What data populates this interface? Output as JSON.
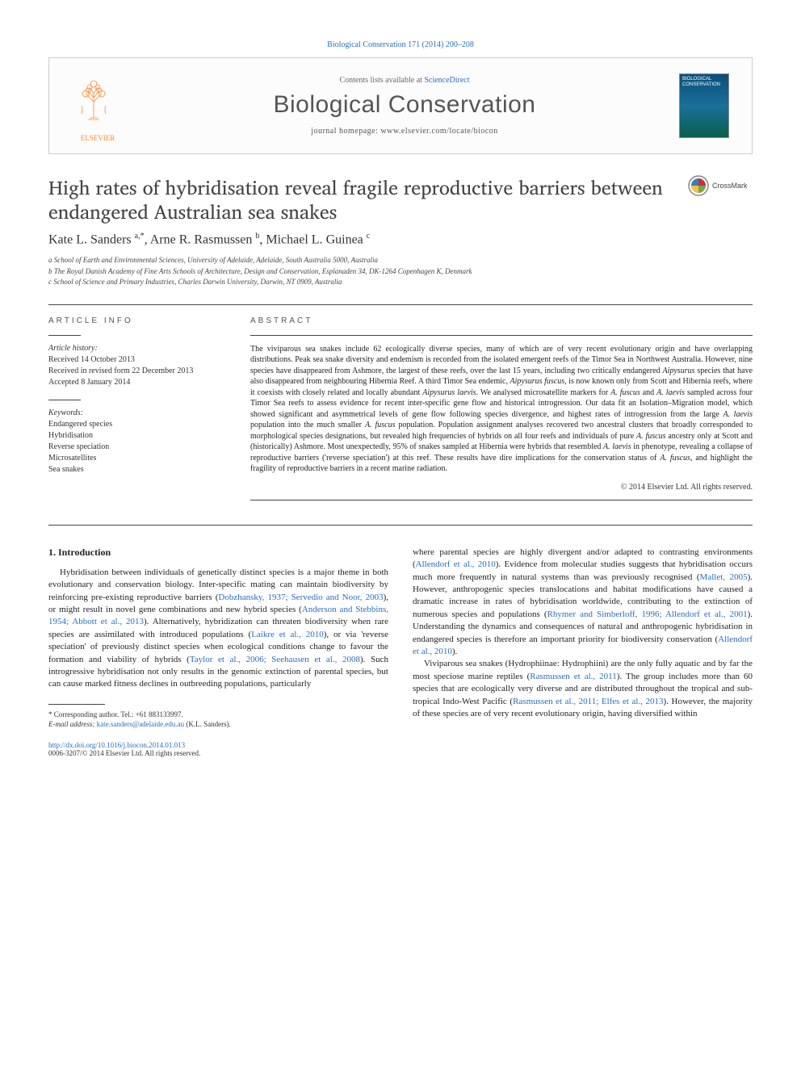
{
  "citation": {
    "journal": "Biological Conservation",
    "vol_pages": "171 (2014) 200–208",
    "url_text": "Biological Conservation 171 (2014) 200–208"
  },
  "banner": {
    "contents_prefix": "Contents lists available at ",
    "contents_link": "ScienceDirect",
    "journal_title": "Biological Conservation",
    "homepage_prefix": "journal homepage: ",
    "homepage_url": "www.elsevier.com/locate/biocon",
    "publisher_name": "ELSEVIER",
    "cover_label": "BIOLOGICAL CONSERVATION"
  },
  "crossmark_label": "CrossMark",
  "article": {
    "title": "High rates of hybridisation reveal fragile reproductive barriers between endangered Australian sea snakes",
    "authors_html": "Kate L. Sanders <sup>a,*</sup>, Arne R. Rasmussen <sup>b</sup>, Michael L. Guinea <sup>c</sup>",
    "affiliations": [
      "a School of Earth and Environmental Sciences, University of Adelaide, Adelaide, South Australia 5000, Australia",
      "b The Royal Danish Academy of Fine Arts Schools of Architecture, Design and Conservation, Esplanaden 34, DK-1264 Copenhagen K, Denmark",
      "c School of Science and Primary Industries, Charles Darwin University, Darwin, NT 0909, Australia"
    ]
  },
  "article_info": {
    "head": "ARTICLE INFO",
    "history_head": "Article history:",
    "history": [
      "Received 14 October 2013",
      "Received in revised form 22 December 2013",
      "Accepted 8 January 2014"
    ],
    "keywords_head": "Keywords:",
    "keywords": [
      "Endangered species",
      "Hybridisation",
      "Reverse speciation",
      "Microsatellites",
      "Sea snakes"
    ]
  },
  "abstract": {
    "head": "ABSTRACT",
    "text": "The viviparous sea snakes include 62 ecologically diverse species, many of which are of very recent evolutionary origin and have overlapping distributions. Peak sea snake diversity and endemism is recorded from the isolated emergent reefs of the Timor Sea in Northwest Australia. However, nine species have disappeared from Ashmore, the largest of these reefs, over the last 15 years, including two critically endangered Aipysurus species that have also disappeared from neighbouring Hibernia Reef. A third Timor Sea endemic, Aipysurus fuscus, is now known only from Scott and Hibernia reefs, where it coexists with closely related and locally abundant Aipysurus laevis. We analysed microsatellite markers for A. fuscus and A. laevis sampled across four Timor Sea reefs to assess evidence for recent inter-specific gene flow and historical introgression. Our data fit an Isolation–Migration model, which showed significant and asymmetrical levels of gene flow following species divergence, and highest rates of introgression from the large A. laevis population into the much smaller A. fuscus population. Population assignment analyses recovered two ancestral clusters that broadly corresponded to morphological species designations, but revealed high frequencies of hybrids on all four reefs and individuals of pure A. fuscus ancestry only at Scott and (historically) Ashmore. Most unexpectedly, 95% of snakes sampled at Hibernia were hybrids that resembled A. laevis in phenotype, revealing a collapse of reproductive barriers ('reverse speciation') at this reef. These results have dire implications for the conservation status of A. fuscus, and highlight the fragility of reproductive barriers in a recent marine radiation.",
    "copyright": "© 2014 Elsevier Ltd. All rights reserved."
  },
  "body": {
    "section_heading": "1. Introduction",
    "col1_p1_pre": "Hybridisation between individuals of genetically distinct species is a major theme in both evolutionary and conservation biology. Inter-specific mating can maintain biodiversity by reinforcing pre-existing reproductive barriers (",
    "col1_p1_ref1": "Dobzhansky, 1937; Servedio and Noor, 2003",
    "col1_p1_mid1": "), or might result in novel gene combinations and new hybrid species (",
    "col1_p1_ref2": "Anderson and Stebbins, 1954; Abbott et al., 2013",
    "col1_p1_mid2": "). Alternatively, hybridization can threaten biodiversity when rare species are assimilated with introduced populations (",
    "col1_p1_ref3": "Laikre et al., 2010",
    "col1_p1_mid3": "), or via 'reverse speciation' of previously distinct species when ecological conditions change to favour the formation and viability of hybrids (",
    "col1_p1_ref4": "Taylor et al., 2006; Seehausen et al., 2008",
    "col1_p1_post": "). Such introgressive hybridisation not only results in the genomic extinction of parental species, but can cause marked fitness declines in outbreeding populations, particularly",
    "col2_p1_pre": "where parental species are highly divergent and/or adapted to contrasting environments (",
    "col2_p1_ref1": "Allendorf et al., 2010",
    "col2_p1_mid1": "). Evidence from molecular studies suggests that hybridisation occurs much more frequently in natural systems than was previously recognised (",
    "col2_p1_ref2": "Mallet, 2005",
    "col2_p1_mid2": "). However, anthropogenic species translocations and habitat modifications have caused a dramatic increase in rates of hybridisation worldwide, contributing to the extinction of numerous species and populations (",
    "col2_p1_ref3": "Rhymer and Simberloff, 1996; Allendorf et al., 2001",
    "col2_p1_mid3": "). Understanding the dynamics and consequences of natural and anthropogenic hybridisation in endangered species is therefore an important priority for biodiversity conservation (",
    "col2_p1_ref4": "Allendorf et al., 2010",
    "col2_p1_post": ").",
    "col2_p2_pre": "Viviparous sea snakes (Hydrophiinae: Hydrophiini) are the only fully aquatic and by far the most speciose marine reptiles (",
    "col2_p2_ref1": "Rasmussen et al., 2011",
    "col2_p2_mid1": "). The group includes more than 60 species that are ecologically very diverse and are distributed throughout the tropical and sub-tropical Indo-West Pacific (",
    "col2_p2_ref2": "Rasmussen et al., 2011; Elfes et al., 2013",
    "col2_p2_post": "). However, the majority of these species are of very recent evolutionary origin, having diversified within"
  },
  "footnote": {
    "corr_label": "* Corresponding author. Tel.: +61 883133997.",
    "email_label": "E-mail address:",
    "email": "kate.sanders@adelaide.edu.au",
    "email_suffix": "(K.L. Sanders)."
  },
  "doi": {
    "url": "http://dx.doi.org/10.1016/j.biocon.2014.01.013",
    "issn_line": "0006-3207/© 2014 Elsevier Ltd. All rights reserved."
  },
  "colors": {
    "link": "#2a6ebb",
    "text": "#222222",
    "rule": "#444444",
    "elsevier_orange": "#ff8a2c"
  }
}
